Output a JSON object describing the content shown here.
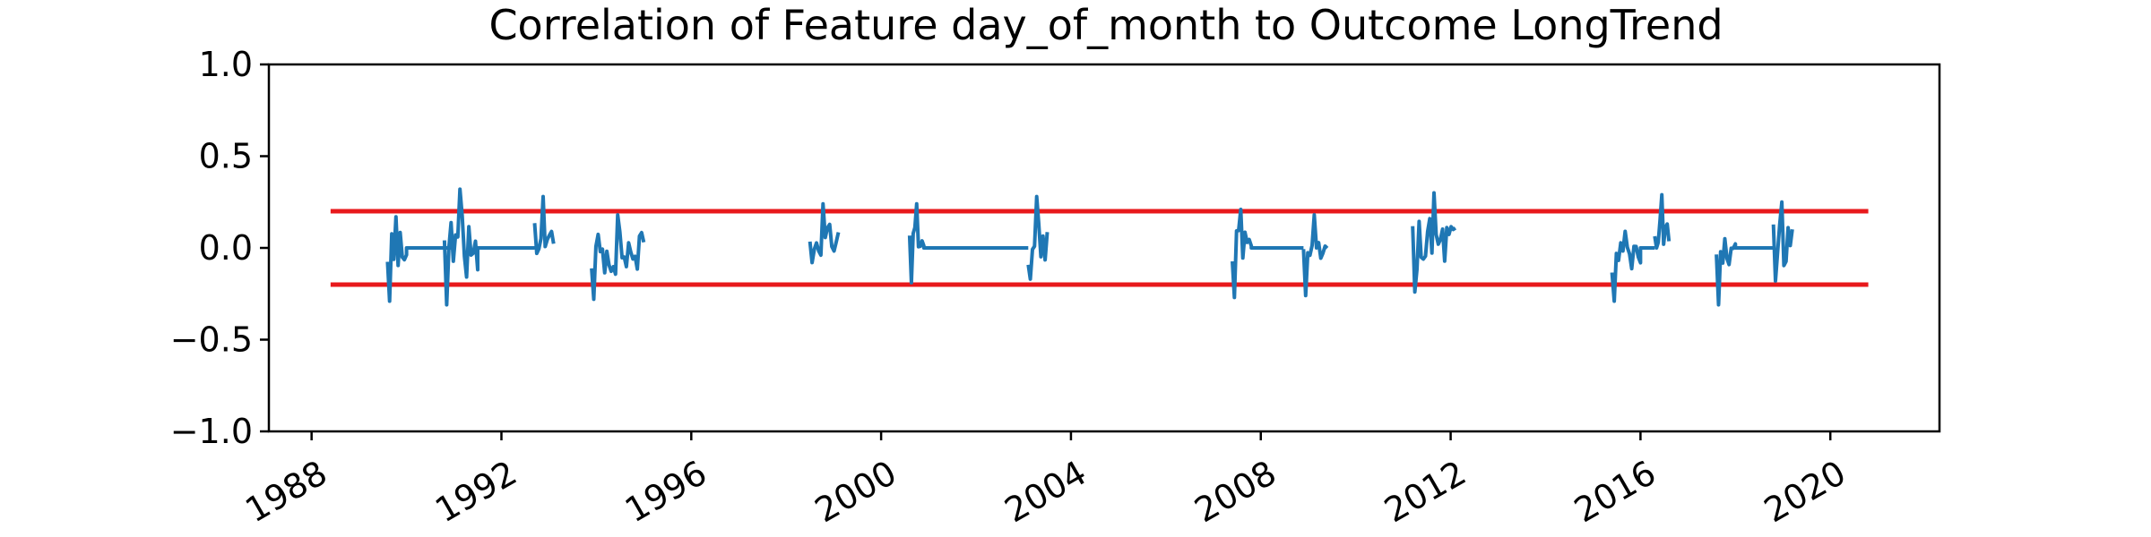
{
  "chart_data": {
    "type": "line",
    "title": "Correlation of Feature day_of_month to Outcome LongTrend",
    "xlabel": "",
    "ylabel": "",
    "xlim": [
      1987.1,
      2022.3
    ],
    "ylim": [
      -1.0,
      1.0
    ],
    "x_ticks": [
      1988,
      1992,
      1996,
      2000,
      2004,
      2008,
      2012,
      2016,
      2020
    ],
    "x_tick_labels": [
      "1988",
      "1992",
      "1996",
      "2000",
      "2004",
      "2008",
      "2012",
      "2016",
      "2020"
    ],
    "y_ticks": [
      -1.0,
      -0.5,
      0.0,
      0.5,
      1.0
    ],
    "y_tick_labels": [
      "−1.0",
      "−0.5",
      "0.0",
      "0.5",
      "1.0"
    ],
    "grid": false,
    "colors": {
      "series": "#1f77b4",
      "threshold": "#e8191c"
    },
    "thresholds": [
      {
        "y": 0.2,
        "x_start": 1988.4,
        "x_end": 2020.8
      },
      {
        "y": -0.2,
        "x_start": 1988.4,
        "x_end": 2020.8
      }
    ],
    "segments": [
      {
        "x_start": 1989.6,
        "x_end": 1990.0,
        "y_min": -0.29,
        "y_max": 0.17,
        "flat_end": 1991.0,
        "flat_y": 0.0
      },
      {
        "x_start": 1990.8,
        "x_end": 1991.5,
        "y_min": -0.31,
        "y_max": 0.32,
        "flat_end": 1992.7,
        "flat_y": 0.0
      },
      {
        "x_start": 1992.7,
        "x_end": 1993.1,
        "y_min": -0.03,
        "y_max": 0.28
      },
      {
        "x_start": 1993.9,
        "x_end": 1995.0,
        "y_min": -0.28,
        "y_max": 0.18
      },
      {
        "x_start": 1998.5,
        "x_end": 1999.1,
        "y_min": -0.08,
        "y_max": 0.24
      },
      {
        "x_start": 2000.6,
        "x_end": 2000.9,
        "y_min": -0.19,
        "y_max": 0.24,
        "flat_end": 2003.1,
        "flat_y": 0.0
      },
      {
        "x_start": 2003.1,
        "x_end": 2003.5,
        "y_min": -0.17,
        "y_max": 0.28
      },
      {
        "x_start": 2007.4,
        "x_end": 2007.8,
        "y_min": -0.27,
        "y_max": 0.21,
        "flat_end": 2008.9,
        "flat_y": 0.0
      },
      {
        "x_start": 2008.9,
        "x_end": 2009.4,
        "y_min": -0.26,
        "y_max": 0.18
      },
      {
        "x_start": 2011.2,
        "x_end": 2012.1,
        "y_min": -0.24,
        "y_max": 0.3
      },
      {
        "x_start": 2015.4,
        "x_end": 2016.0,
        "y_min": -0.29,
        "y_max": 0.09,
        "flat_end": 2016.3,
        "flat_y": 0.0
      },
      {
        "x_start": 2016.3,
        "x_end": 2016.6,
        "y_min": 0.0,
        "y_max": 0.29
      },
      {
        "x_start": 2017.6,
        "x_end": 2018.0,
        "y_min": -0.31,
        "y_max": 0.05,
        "flat_end": 2018.8,
        "flat_y": 0.0
      },
      {
        "x_start": 2018.8,
        "x_end": 2019.2,
        "y_min": -0.18,
        "y_max": 0.25
      }
    ]
  }
}
